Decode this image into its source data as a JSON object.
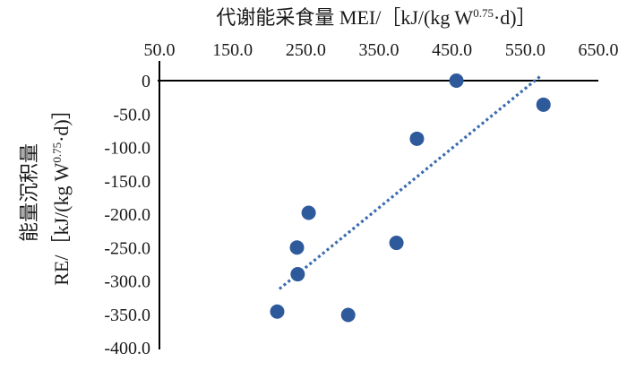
{
  "chart_data": {
    "type": "scatter",
    "xlabel": {
      "prefix": "代谢能采食量  MEI/［kJ/(kg W",
      "sup": "0.75",
      "suffix": "·d)］"
    },
    "ylabel": {
      "line1": "能量沉积量",
      "prefix": "RE/［kJ/(kg W",
      "sup": "0.75",
      "suffix": "·d)］"
    },
    "xlim": [
      50,
      650
    ],
    "ylim": [
      -400,
      0
    ],
    "x_axis_position": "top",
    "x_ticks": [
      50,
      150,
      250,
      350,
      450,
      550,
      650
    ],
    "x_tick_labels": [
      "50.0",
      "150.0",
      "250.0",
      "350.0",
      "450.0",
      "550.0",
      "650.0"
    ],
    "y_ticks": [
      0,
      -50,
      -100,
      -150,
      -200,
      -250,
      -300,
      -350,
      -400
    ],
    "y_tick_labels": [
      "0",
      "-50.0",
      "-100.0",
      "-150.0",
      "-200.0",
      "-250.0",
      "-300.0",
      "-350.0",
      "-400.0"
    ],
    "grid": false,
    "legend": "none",
    "series": [
      {
        "points": [
          {
            "x": 456,
            "y": 0
          },
          {
            "x": 575,
            "y": -36
          },
          {
            "x": 402,
            "y": -87
          },
          {
            "x": 254,
            "y": -198
          },
          {
            "x": 238,
            "y": -250
          },
          {
            "x": 374,
            "y": -243
          },
          {
            "x": 239,
            "y": -290
          },
          {
            "x": 211,
            "y": -346
          },
          {
            "x": 308,
            "y": -351
          }
        ],
        "color": "#2e5a9c"
      }
    ],
    "trendline": {
      "style": "dotted",
      "color": "#3a6bb0",
      "start": {
        "x": 214,
        "y": -312
      },
      "end": {
        "x": 570,
        "y": 6
      }
    }
  }
}
